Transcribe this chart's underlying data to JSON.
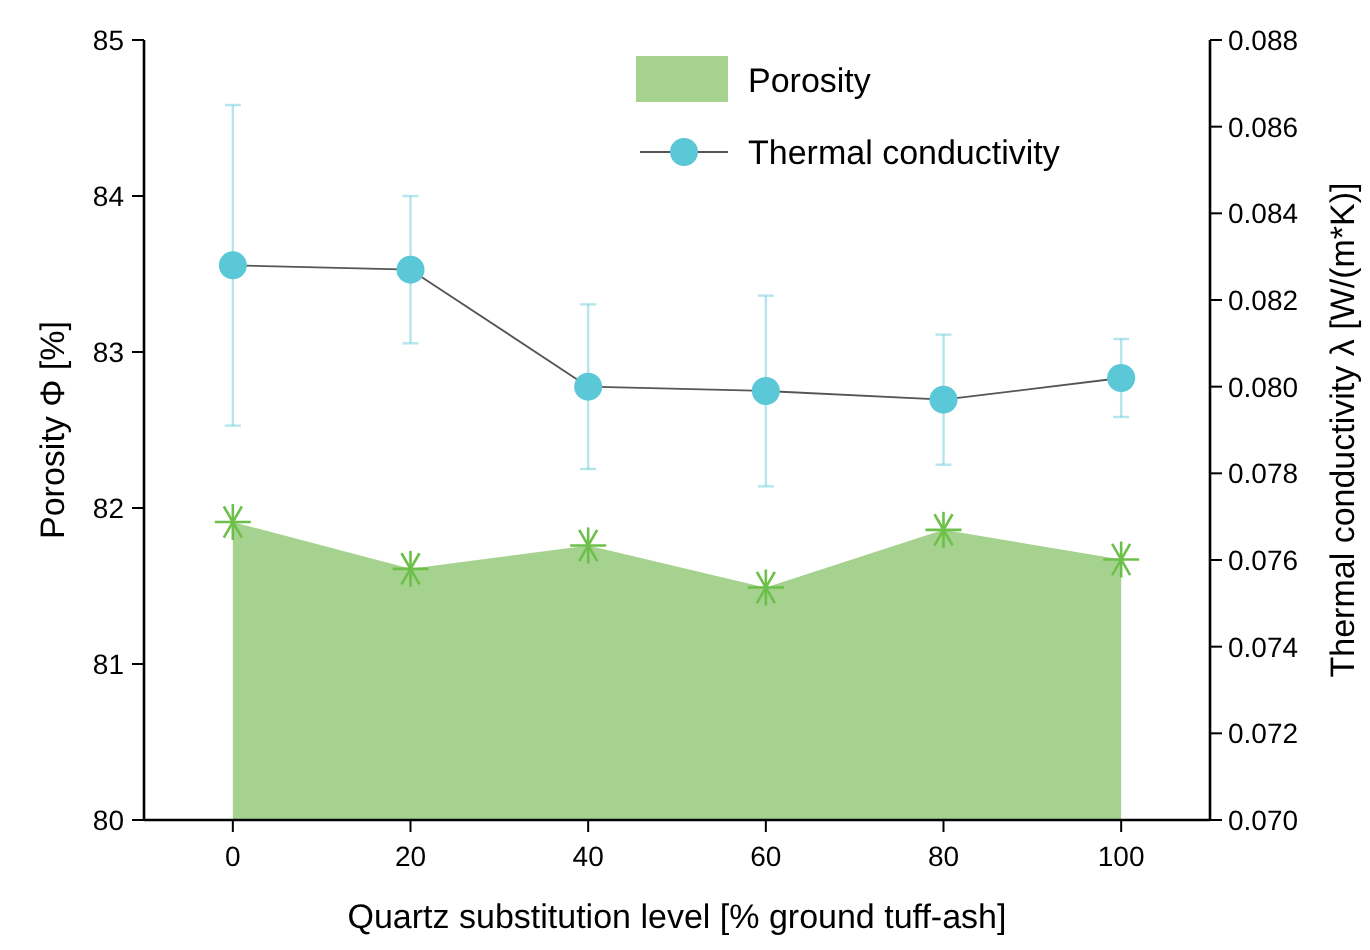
{
  "chart_data": {
    "type": "area",
    "xlabel": "Quartz substitution level [% ground tuff-ash]",
    "ylabel": "Porosity Φ [%]",
    "y2label": "Thermal conductivity λ [W/(m*K)]",
    "x": [
      0,
      20,
      40,
      60,
      80,
      100
    ],
    "series": [
      {
        "name": "Porosity",
        "color": "#a5d28f",
        "marker": "cross",
        "values": [
          81.91,
          81.61,
          81.76,
          81.49,
          81.86,
          81.67
        ]
      },
      {
        "name": "Thermal conductivity",
        "type": "line",
        "axis": "y2",
        "color": "#5bc8d8",
        "marker": "circle",
        "values": [
          0.0828,
          0.0827,
          0.08,
          0.0799,
          0.0797,
          0.0802
        ],
        "errors": [
          0.0037,
          0.0017,
          0.0019,
          0.0022,
          0.0015,
          0.0009
        ]
      }
    ],
    "xlim": [
      -10,
      110
    ],
    "xticks": [
      0,
      20,
      40,
      60,
      80,
      100
    ],
    "ylim": [
      80,
      85
    ],
    "yticks": [
      80,
      81,
      82,
      83,
      84,
      85
    ],
    "y2lim": [
      0.07,
      0.088
    ],
    "y2ticks": [
      {
        "value": 0.07,
        "label": "0.070"
      },
      {
        "value": 0.072,
        "label": "0.072"
      },
      {
        "value": 0.074,
        "label": "0.074"
      },
      {
        "value": 0.076,
        "label": "0.076"
      },
      {
        "value": 0.078,
        "label": "0.078"
      },
      {
        "value": 0.08,
        "label": "0.080"
      },
      {
        "value": 0.082,
        "label": "0.082"
      },
      {
        "value": 0.084,
        "label": "0.084"
      },
      {
        "value": 0.086,
        "label": "0.086"
      },
      {
        "value": 0.088,
        "label": "0.088"
      }
    ],
    "legend": "top right",
    "grid": false
  }
}
